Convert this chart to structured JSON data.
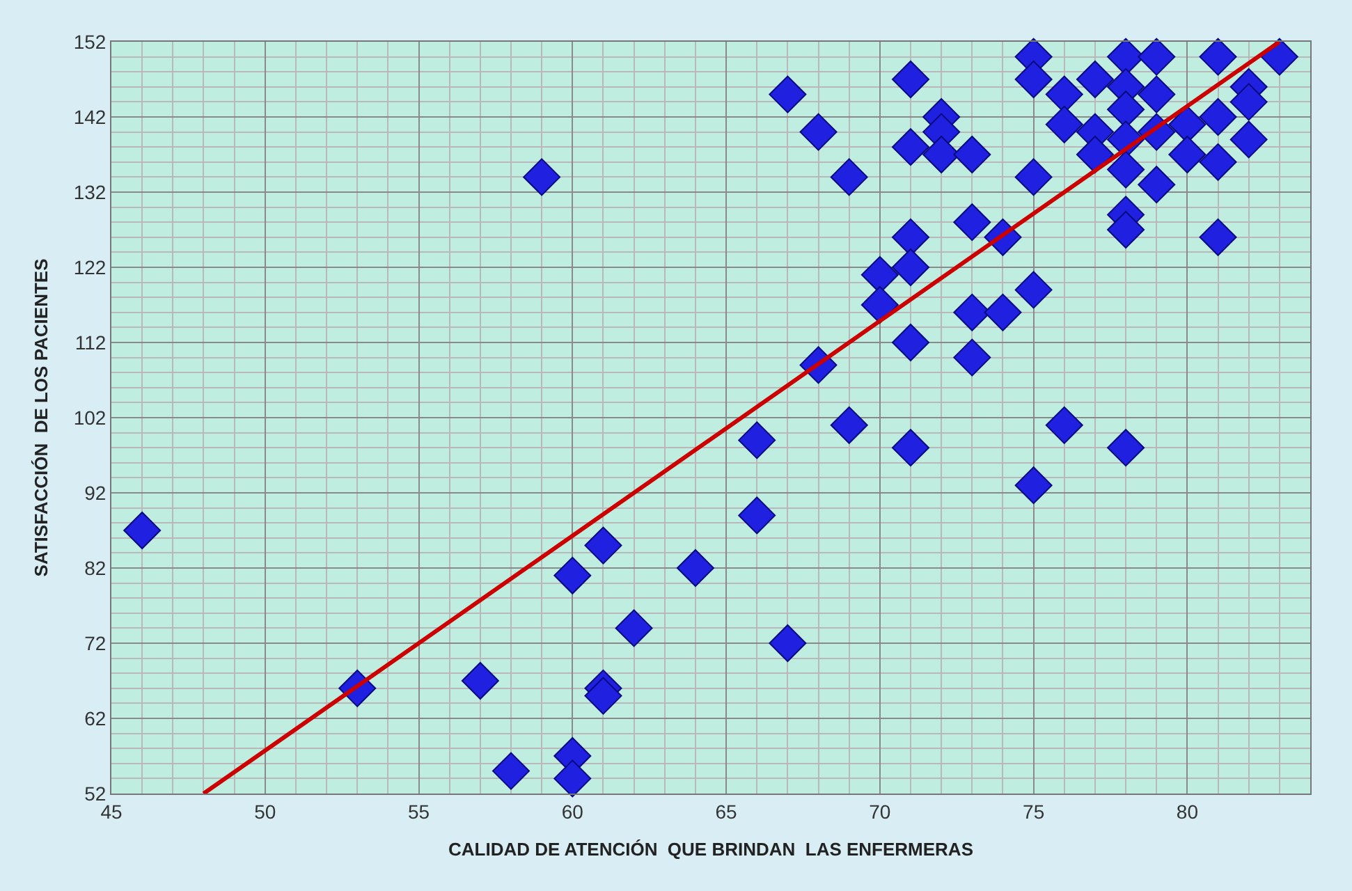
{
  "chart_data": {
    "type": "scatter",
    "xlabel": "CALIDAD DE ATENCIÓN  QUE BRINDAN  LAS ENFERMERAS",
    "ylabel": "SATISFACCIÓN  DE LOS PACIENTES",
    "xlim": [
      45,
      84
    ],
    "xticks": [
      45,
      50,
      55,
      60,
      65,
      70,
      75,
      80
    ],
    "ylim": [
      52,
      152
    ],
    "yticks": [
      52,
      62,
      72,
      82,
      92,
      102,
      112,
      122,
      132,
      142,
      152
    ],
    "grid": true,
    "marker": "diamond",
    "series": [
      {
        "color": "#2020e0",
        "x": [
          46,
          53,
          57,
          58,
          59,
          60,
          60,
          60,
          61,
          61,
          61,
          62,
          64,
          66,
          66,
          67,
          67,
          68,
          68,
          69,
          69,
          70,
          70,
          71,
          71,
          71,
          71,
          71,
          71,
          72,
          72,
          72,
          73,
          73,
          73,
          73,
          74,
          74,
          75,
          75,
          75,
          75,
          75,
          76,
          76,
          76,
          77,
          77,
          77,
          78,
          78,
          78,
          78,
          78,
          78,
          78,
          78,
          79,
          79,
          79,
          79,
          80,
          80,
          81,
          81,
          81,
          81,
          82,
          82,
          82,
          83
        ],
        "values": [
          87,
          66,
          67,
          55,
          134,
          81,
          57,
          54,
          85,
          66,
          65,
          74,
          82,
          99,
          89,
          72,
          145,
          140,
          109,
          134,
          101,
          121,
          117,
          147,
          138,
          126,
          122,
          112,
          98,
          142,
          140,
          137,
          137,
          128,
          116,
          110,
          126,
          116,
          150,
          147,
          134,
          119,
          93,
          145,
          141,
          101,
          147,
          140,
          137,
          150,
          146,
          143,
          139,
          135,
          129,
          127,
          98,
          150,
          145,
          140,
          133,
          141,
          137,
          150,
          142,
          136,
          126,
          146,
          144,
          139,
          150
        ]
      },
      {
        "type": "line",
        "color": "#cc0000",
        "marker": "none",
        "x": [
          48,
          83
        ],
        "values": [
          52,
          152
        ]
      }
    ]
  }
}
